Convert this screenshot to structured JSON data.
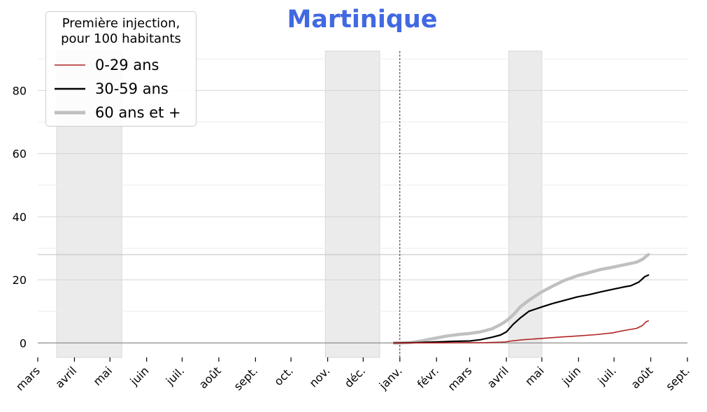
{
  "title": "Martinique",
  "legend": {
    "title_line1": "Première injection,",
    "title_line2": "pour 100 habitants",
    "entries": [
      {
        "label": "0-29 ans",
        "color": "#b22222"
      },
      {
        "label": "30-59 ans",
        "color": "#000000"
      },
      {
        "label": "60 ans et +",
        "color": "#c0c0c0"
      }
    ]
  },
  "chart_data": {
    "type": "line",
    "title": "Martinique",
    "ylim": [
      -4.6,
      92.5
    ],
    "yticks": [
      0,
      20,
      40,
      60,
      80
    ],
    "x_axis": {
      "start": "2020-03-01",
      "end": "2021-09-01",
      "tick_labels": [
        "mars",
        "avril",
        "mai",
        "juin",
        "juil.",
        "août",
        "sept.",
        "oct.",
        "nov.",
        "déc.",
        "janv.",
        "févr.",
        "mars",
        "avril",
        "mai",
        "juin",
        "juil.",
        "août",
        "sept."
      ],
      "tick_dates": [
        "2020-03-01",
        "2020-04-01",
        "2020-05-01",
        "2020-06-01",
        "2020-07-01",
        "2020-08-01",
        "2020-09-01",
        "2020-10-01",
        "2020-11-01",
        "2020-12-01",
        "2021-01-01",
        "2021-02-01",
        "2021-03-01",
        "2021-04-01",
        "2021-05-01",
        "2021-06-01",
        "2021-07-01",
        "2021-08-01",
        "2021-09-01"
      ]
    },
    "shaded_periods": [
      {
        "start": "2020-03-17",
        "end": "2020-05-11"
      },
      {
        "start": "2020-10-30",
        "end": "2020-12-15"
      },
      {
        "start": "2021-04-03",
        "end": "2021-05-01"
      }
    ],
    "vline_date": "2021-01-01",
    "hline_value": 28,
    "grid": true,
    "series": [
      {
        "name": "0-29 ans",
        "color": "#b22222",
        "width": 1.6,
        "points": [
          [
            "2020-12-27",
            0
          ],
          [
            "2021-02-15",
            0.05
          ],
          [
            "2021-03-15",
            0.1
          ],
          [
            "2021-03-31",
            0.3
          ],
          [
            "2021-04-05",
            0.6
          ],
          [
            "2021-04-15",
            1.0
          ],
          [
            "2021-04-30",
            1.4
          ],
          [
            "2021-05-15",
            1.8
          ],
          [
            "2021-05-31",
            2.2
          ],
          [
            "2021-06-15",
            2.6
          ],
          [
            "2021-06-30",
            3.2
          ],
          [
            "2021-07-05",
            3.6
          ],
          [
            "2021-07-15",
            4.3
          ],
          [
            "2021-07-20",
            4.6
          ],
          [
            "2021-07-25",
            5.5
          ],
          [
            "2021-07-28",
            6.7
          ],
          [
            "2021-07-30",
            7.0
          ]
        ]
      },
      {
        "name": "30-59 ans",
        "color": "#000000",
        "width": 2.2,
        "points": [
          [
            "2020-12-27",
            0
          ],
          [
            "2021-01-15",
            0.1
          ],
          [
            "2021-01-31",
            0.3
          ],
          [
            "2021-02-15",
            0.5
          ],
          [
            "2021-03-01",
            0.6
          ],
          [
            "2021-03-10",
            1.0
          ],
          [
            "2021-03-20",
            1.8
          ],
          [
            "2021-03-27",
            2.5
          ],
          [
            "2021-04-01",
            3.5
          ],
          [
            "2021-04-07",
            6.0
          ],
          [
            "2021-04-13",
            8.0
          ],
          [
            "2021-04-20",
            10.0
          ],
          [
            "2021-04-30",
            11.3
          ],
          [
            "2021-05-10",
            12.5
          ],
          [
            "2021-05-20",
            13.5
          ],
          [
            "2021-05-31",
            14.6
          ],
          [
            "2021-06-10",
            15.3
          ],
          [
            "2021-06-20",
            16.2
          ],
          [
            "2021-06-30",
            17.0
          ],
          [
            "2021-07-10",
            17.8
          ],
          [
            "2021-07-15",
            18.1
          ],
          [
            "2021-07-22",
            19.3
          ],
          [
            "2021-07-27",
            21.0
          ],
          [
            "2021-07-30",
            21.5
          ]
        ]
      },
      {
        "name": "60 ans et +",
        "color": "#c0c0c0",
        "width": 4.5,
        "points": [
          [
            "2020-12-27",
            0
          ],
          [
            "2021-01-10",
            0.1
          ],
          [
            "2021-01-20",
            0.7
          ],
          [
            "2021-01-31",
            1.5
          ],
          [
            "2021-02-10",
            2.2
          ],
          [
            "2021-02-20",
            2.7
          ],
          [
            "2021-03-01",
            3.0
          ],
          [
            "2021-03-10",
            3.5
          ],
          [
            "2021-03-20",
            4.5
          ],
          [
            "2021-03-27",
            5.8
          ],
          [
            "2021-04-01",
            7.0
          ],
          [
            "2021-04-07",
            9.0
          ],
          [
            "2021-04-13",
            11.5
          ],
          [
            "2021-04-20",
            13.5
          ],
          [
            "2021-04-30",
            16.0
          ],
          [
            "2021-05-10",
            18.0
          ],
          [
            "2021-05-20",
            19.8
          ],
          [
            "2021-05-31",
            21.3
          ],
          [
            "2021-06-10",
            22.3
          ],
          [
            "2021-06-20",
            23.3
          ],
          [
            "2021-06-30",
            24.0
          ],
          [
            "2021-07-10",
            24.8
          ],
          [
            "2021-07-20",
            25.6
          ],
          [
            "2021-07-25",
            26.5
          ],
          [
            "2021-07-30",
            28.0
          ]
        ]
      }
    ]
  }
}
